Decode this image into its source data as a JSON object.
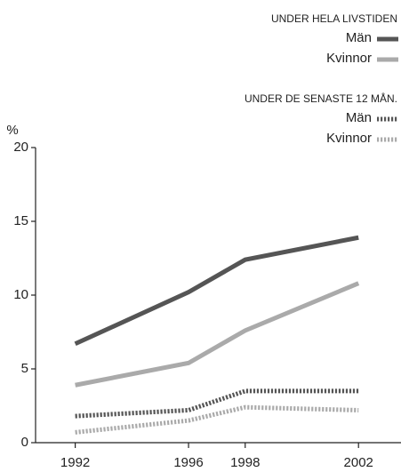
{
  "chart_data": {
    "type": "line",
    "y_label": "%",
    "legend_titles": [
      "UNDER HELA LIVSTIDEN",
      "UNDER DE SENASTE 12 MÅN."
    ],
    "x": [
      1992,
      1996,
      1998,
      2002
    ],
    "series": [
      {
        "name": "Män",
        "color": "#555555",
        "dash": "solid",
        "group": 0,
        "values": [
          6.7,
          10.2,
          12.4,
          13.9
        ]
      },
      {
        "name": "Kvinnor",
        "color": "#aaaaaa",
        "dash": "solid",
        "group": 0,
        "values": [
          3.9,
          5.4,
          7.6,
          10.8
        ]
      },
      {
        "name": "Män",
        "color": "#555555",
        "dash": "dotted",
        "group": 1,
        "values": [
          1.8,
          2.2,
          3.5,
          3.5
        ]
      },
      {
        "name": "Kvinnor",
        "color": "#aaaaaa",
        "dash": "dotted",
        "group": 1,
        "values": [
          0.7,
          1.5,
          2.4,
          2.2
        ]
      }
    ],
    "xlim": [
      1990.6,
      2003.5
    ],
    "xticks": [
      1992,
      1996,
      1998,
      2002
    ],
    "ylim": [
      0,
      20
    ],
    "yticks": [
      0,
      5,
      10,
      15,
      20
    ]
  }
}
